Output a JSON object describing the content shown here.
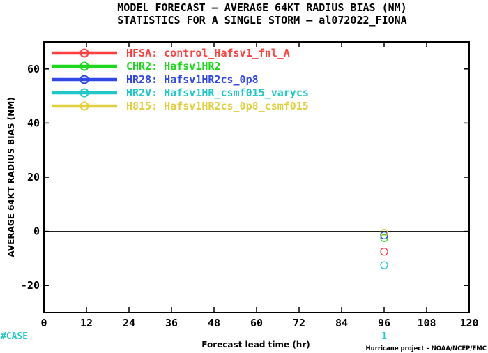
{
  "chart_data": {
    "type": "scatter",
    "title": "MODEL FORECAST – AVERAGE 64KT RADIUS BIAS (NM)",
    "subtitle": "STATISTICS FOR A SINGLE STORM – al072022_FIONA",
    "xlabel": "Forecast lead time (hr)",
    "ylabel": "AVERAGE 64KT RADIUS BIAS (NM)",
    "xlim": [
      0,
      120
    ],
    "ylim": [
      -30,
      70
    ],
    "xticks": [
      0,
      12,
      24,
      36,
      48,
      60,
      72,
      84,
      96,
      108,
      120
    ],
    "yticks": [
      -20,
      0,
      20,
      40,
      60
    ],
    "legend_position": "top-left",
    "zero_line": true,
    "series": [
      {
        "name": "HFSA: control_Hafsv1_fnl_A",
        "color": "#ff4040",
        "points": [
          {
            "x": 96,
            "y": -7.5
          }
        ]
      },
      {
        "name": "CHR2: Hafsv1HR2",
        "color": "#1ed81e",
        "points": [
          {
            "x": 96,
            "y": -2.5
          }
        ]
      },
      {
        "name": "HR28: Hafsv1HR2cs_0p8",
        "color": "#3048e8",
        "points": [
          {
            "x": 96,
            "y": -1.5
          }
        ]
      },
      {
        "name": "HR2V: Hafsv1HR_csmf015_varycs",
        "color": "#20c8c8",
        "points": [
          {
            "x": 96,
            "y": -12.5
          }
        ]
      },
      {
        "name": "H815: Hafsv1HR2cs_0p8_csmf015",
        "color": "#e0d040",
        "points": [
          {
            "x": 96,
            "y": -0.5
          }
        ]
      }
    ],
    "case_label": "#CASE",
    "case_counts": [
      {
        "x": 96,
        "count": "1"
      }
    ],
    "case_color": "#20c8c8",
    "credit": "Hurricane project – NOAA/NCEP/EMC"
  }
}
